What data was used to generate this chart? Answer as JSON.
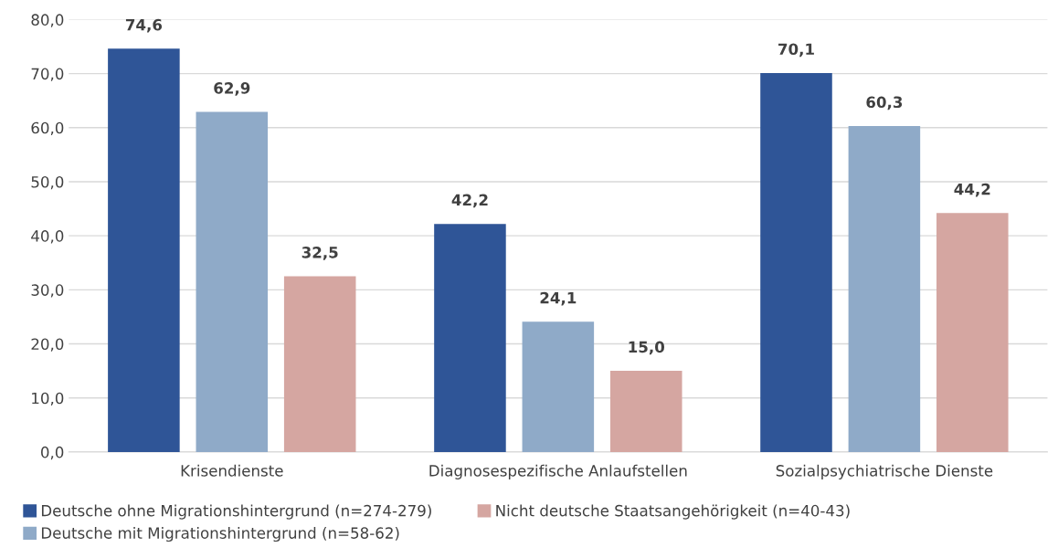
{
  "chart_data": {
    "type": "bar",
    "categories": [
      "Krisendienste",
      "Diagnosespezifische Anlaufstellen",
      "Sozialpsychiatrische Dienste"
    ],
    "series": [
      {
        "name": "Deutsche ohne Migrationshintergrund (n=274-279)",
        "color": "#2f5597",
        "values": [
          74.6,
          42.2,
          70.1
        ],
        "value_labels": [
          "74,6",
          "42,2",
          "70,1"
        ]
      },
      {
        "name": "Deutsche mit Migrationshintergrund (n=58-62)",
        "color": "#8faac8",
        "values": [
          62.9,
          24.1,
          60.3
        ],
        "value_labels": [
          "62,9",
          "24,1",
          "60,3"
        ]
      },
      {
        "name": "Nicht deutsche Staatsangehörigkeit (n=40-43)",
        "color": "#d5a6a1",
        "values": [
          32.5,
          15.0,
          44.2
        ],
        "value_labels": [
          "32,5",
          "15,0",
          "44,2"
        ]
      }
    ],
    "ylim": [
      0,
      80
    ],
    "yticks": [
      {
        "value": 0,
        "label": "0,0"
      },
      {
        "value": 10,
        "label": "10,0"
      },
      {
        "value": 20,
        "label": "20,0"
      },
      {
        "value": 30,
        "label": "30,0"
      },
      {
        "value": 40,
        "label": "40,0"
      },
      {
        "value": 50,
        "label": "50,0"
      },
      {
        "value": 60,
        "label": "60,0"
      },
      {
        "value": 70,
        "label": "70,0"
      },
      {
        "value": 80,
        "label": "80,0"
      }
    ],
    "grid": "y",
    "legend": "bottom"
  }
}
